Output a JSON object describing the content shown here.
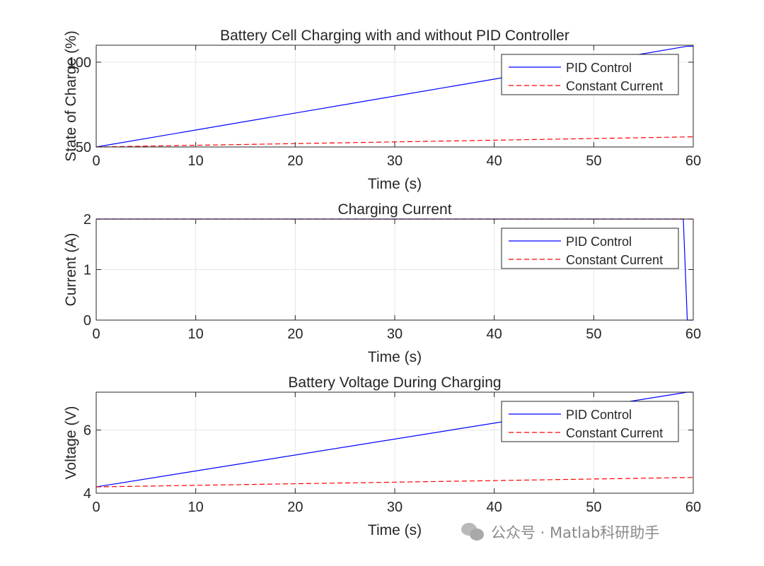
{
  "chart_data": [
    {
      "type": "line",
      "title": "Battery Cell Charging with and without PID Controller",
      "xlabel": "Time (s)",
      "ylabel": "State of Charge (%)",
      "xlim": [
        0,
        60
      ],
      "ylim": [
        50,
        110
      ],
      "xticks": [
        0,
        10,
        20,
        30,
        40,
        50,
        60
      ],
      "yticks": [
        50,
        100
      ],
      "grid": true,
      "legend_location": "top-right",
      "series": [
        {
          "name": "PID Control",
          "color": "#0000ff",
          "style": "solid",
          "x": [
            0,
            59.4,
            60
          ],
          "y": [
            50,
            109.4,
            109.4
          ]
        },
        {
          "name": "Constant Current",
          "color": "#ff0000",
          "style": "dashed",
          "x": [
            0,
            60
          ],
          "y": [
            50,
            56
          ]
        }
      ]
    },
    {
      "type": "line",
      "title": "Charging Current",
      "xlabel": "Time (s)",
      "ylabel": "Current (A)",
      "xlim": [
        0,
        60
      ],
      "ylim": [
        0,
        2
      ],
      "xticks": [
        0,
        10,
        20,
        30,
        40,
        50,
        60
      ],
      "yticks": [
        0,
        1,
        2
      ],
      "grid": true,
      "legend_location": "top-right",
      "series": [
        {
          "name": "PID Control",
          "color": "#0000ff",
          "style": "solid",
          "x": [
            0,
            59.0,
            59.4,
            60
          ],
          "y": [
            2,
            2,
            0,
            0
          ]
        },
        {
          "name": "Constant Current",
          "color": "#ff0000",
          "style": "dashed",
          "x": [
            0,
            60
          ],
          "y": [
            2,
            2
          ]
        }
      ]
    },
    {
      "type": "line",
      "title": "Battery Voltage During Charging",
      "xlabel": "Time (s)",
      "ylabel": "Voltage (V)",
      "xlim": [
        0,
        60
      ],
      "ylim": [
        4,
        7.2
      ],
      "xticks": [
        0,
        10,
        20,
        30,
        40,
        50,
        60
      ],
      "yticks": [
        4,
        6
      ],
      "grid": true,
      "legend_location": "top-right",
      "series": [
        {
          "name": "PID Control",
          "color": "#0000ff",
          "style": "solid",
          "x": [
            0,
            59.4,
            60
          ],
          "y": [
            4.2,
            7.2,
            7.2
          ]
        },
        {
          "name": "Constant Current",
          "color": "#ff0000",
          "style": "dashed",
          "x": [
            0,
            60
          ],
          "y": [
            4.2,
            4.5
          ]
        }
      ]
    }
  ],
  "watermark": {
    "text": "公众号 · Matlab科研助手",
    "icon": "wechat-icon"
  }
}
